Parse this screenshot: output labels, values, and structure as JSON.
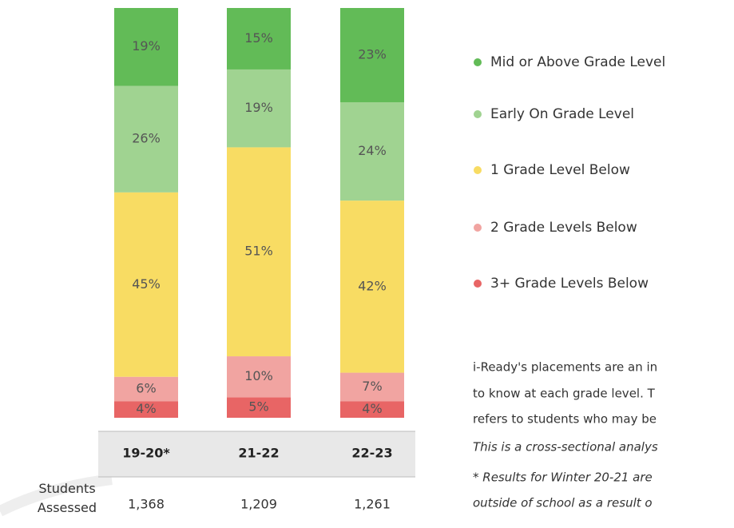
{
  "chart_data": {
    "type": "bar",
    "stacked": true,
    "categories": [
      "19-20*",
      "21-22",
      "22-23"
    ],
    "ylim": [
      0,
      100
    ],
    "series": [
      {
        "name": "Mid or Above Grade Level",
        "color": "#62bb57",
        "values": [
          19,
          15,
          23
        ],
        "value_labels": [
          "19%",
          "15%",
          "23%"
        ]
      },
      {
        "name": "Early On Grade Level",
        "color": "#a0d391",
        "values": [
          26,
          19,
          24
        ],
        "value_labels": [
          "26%",
          "19%",
          "24%"
        ]
      },
      {
        "name": "1 Grade Level Below",
        "color": "#f8dc63",
        "values": [
          45,
          51,
          42
        ],
        "value_labels": [
          "45%",
          "51%",
          "42%"
        ]
      },
      {
        "name": "2 Grade Levels Below",
        "color": "#f1a4a1",
        "values": [
          6,
          10,
          7
        ],
        "value_labels": [
          "6%",
          "10%",
          "7%"
        ]
      },
      {
        "name": "3+ Grade Levels Below",
        "color": "#e86565",
        "values": [
          4,
          5,
          4
        ],
        "value_labels": [
          "4%",
          "5%",
          "4%"
        ]
      }
    ]
  },
  "table": {
    "row_label": "Students Assessed",
    "values": [
      "1,368",
      "1,209",
      "1,261"
    ]
  },
  "notes": [
    "i-Ready's placements are an in",
    "to know at each grade level. T",
    "refers to students who may be"
  ],
  "italic_notes": [
    "This is a cross-sectional analys",
    "* Results for Winter 20-21 are",
    "outside of school as a result o"
  ]
}
